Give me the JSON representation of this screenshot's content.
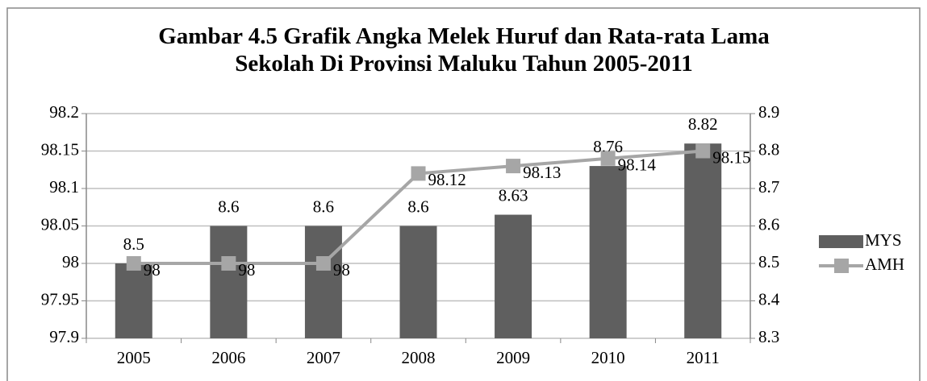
{
  "chart_data": {
    "type": "bar",
    "title": "Gambar 4.5 Grafik Angka Melek Huruf dan Rata-rata Lama Sekolah Di Provinsi Maluku Tahun 2005-2011",
    "categories": [
      "2005",
      "2006",
      "2007",
      "2008",
      "2009",
      "2010",
      "2011"
    ],
    "series": [
      {
        "name": "MYS",
        "type": "bar",
        "axis": "y2",
        "color": "#5f5f5f",
        "values": [
          8.5,
          8.6,
          8.6,
          8.6,
          8.63,
          8.76,
          8.82
        ]
      },
      {
        "name": "AMH",
        "type": "line",
        "axis": "y",
        "color": "#a6a6a6",
        "values": [
          98,
          98,
          98,
          98.12,
          98.13,
          98.14,
          98.15
        ]
      }
    ],
    "ylim": [
      97.9,
      98.2
    ],
    "yticks": [
      97.9,
      97.95,
      98,
      98.05,
      98.1,
      98.15,
      98.2
    ],
    "y2lim": [
      8.3,
      8.9
    ],
    "y2ticks": [
      8.3,
      8.4,
      8.5,
      8.6,
      8.7,
      8.8,
      8.9
    ],
    "grid": true,
    "legend": "right"
  }
}
